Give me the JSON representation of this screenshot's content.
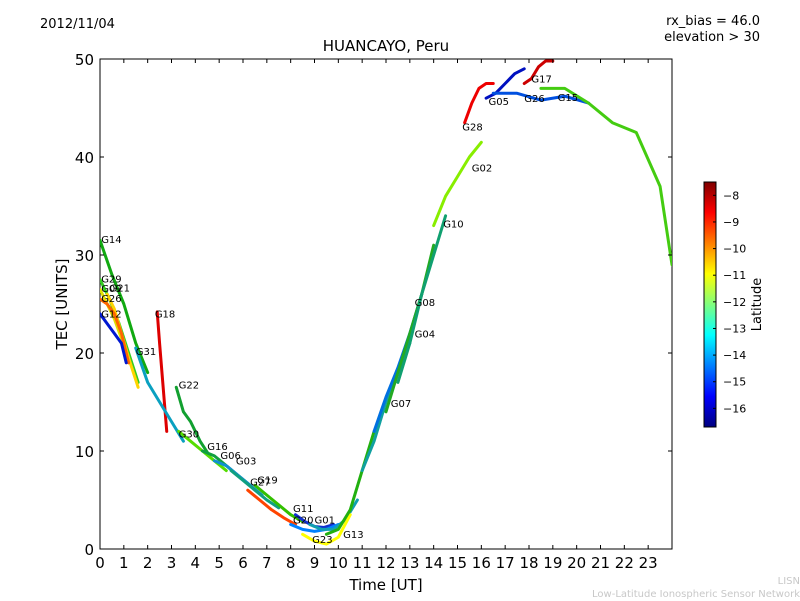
{
  "header": {
    "date": "2012/11/04",
    "rx_bias": "rx_bias = 46.0",
    "elevation": "elevation > 30",
    "credit_line1": "LISN",
    "credit_line2": "Low-Latitude Ionospheric Sensor Network"
  },
  "chart_data": {
    "type": "scatter",
    "title": "HUANCAYO, Peru",
    "xlabel": "Time [UT]",
    "ylabel": "TEC [UNITS]",
    "xlim": [
      0,
      24
    ],
    "ylim": [
      0,
      50
    ],
    "xticks": [
      0,
      1,
      2,
      3,
      4,
      5,
      6,
      7,
      8,
      9,
      10,
      11,
      12,
      13,
      14,
      15,
      16,
      17,
      18,
      19,
      20,
      21,
      22,
      23
    ],
    "yticks": [
      0,
      10,
      20,
      30,
      40,
      50
    ],
    "colorbar": {
      "label": "Latitude",
      "range": [
        -16.7,
        -7.5
      ],
      "ticks": [
        -8,
        -9,
        -10,
        -11,
        -12,
        -13,
        -14,
        -15,
        -16
      ],
      "colors": [
        "#00007f",
        "#0000ff",
        "#007fff",
        "#00ffff",
        "#7fff7f",
        "#ffff00",
        "#ff7f00",
        "#ff0000",
        "#7f0000"
      ]
    },
    "series": [
      {
        "name": "G14",
        "lat": -13.2,
        "color": "#11a911",
        "x": [
          0,
          0.5,
          1,
          1.5,
          2
        ],
        "y": [
          31.5,
          28,
          25,
          21,
          18
        ]
      },
      {
        "name": "G29",
        "lat": -12.6,
        "color": "#33cc22",
        "x": [
          0,
          0.4,
          0.8,
          1.2,
          1.6
        ],
        "y": [
          27.5,
          25.5,
          23,
          20,
          17
        ]
      },
      {
        "name": "G21",
        "lat": -10.3,
        "color": "#ffd400",
        "x": [
          0.3,
          0.6,
          0.9,
          1.2,
          1.6
        ],
        "y": [
          26,
          24.5,
          22,
          19.5,
          16.5
        ]
      },
      {
        "name": "G09",
        "lat": -11.0,
        "color": "#e0e000",
        "x": [
          0,
          0.3,
          0.6,
          0.9,
          1.2
        ],
        "y": [
          26.5,
          25,
          23.5,
          21.5,
          19
        ]
      },
      {
        "name": "G26",
        "lat": -9.3,
        "color": "#ff6600",
        "x": [
          0,
          0.3,
          0.6,
          0.9,
          1.2
        ],
        "y": [
          25.5,
          25,
          24,
          22,
          19
        ]
      },
      {
        "name": "G12",
        "lat": -16.3,
        "color": "#0018d0",
        "x": [
          0,
          0.3,
          0.6,
          0.9,
          1.1
        ],
        "y": [
          24,
          23,
          22,
          21,
          19
        ]
      },
      {
        "name": "G18",
        "lat": -8.2,
        "color": "#dd0000",
        "x": [
          2.4,
          2.5,
          2.6,
          2.7,
          2.8
        ],
        "y": [
          24.2,
          21,
          18,
          15,
          12
        ]
      },
      {
        "name": "G31",
        "lat": -15.0,
        "color": "#0aa0c0",
        "x": [
          1.5,
          2,
          2.5,
          3,
          3.5
        ],
        "y": [
          20.5,
          17,
          15,
          13,
          11
        ]
      },
      {
        "name": "G22",
        "lat": -13.6,
        "color": "#12a030",
        "x": [
          3.2,
          3.5,
          3.8,
          4.2,
          4.6
        ],
        "y": [
          16.5,
          14,
          13,
          11,
          9.5
        ]
      },
      {
        "name": "G30",
        "lat": -12.0,
        "color": "#55dd00",
        "x": [
          3.3,
          3.8,
          4.3,
          4.8,
          5.3
        ],
        "y": [
          12,
          11,
          10,
          9,
          8
        ]
      },
      {
        "name": "G16",
        "lat": -13.5,
        "color": "#10a040",
        "x": [
          4.3,
          4.8,
          5.3,
          5.8,
          6.3
        ],
        "y": [
          10,
          9.5,
          8.5,
          7.5,
          6.5
        ]
      },
      {
        "name": "G06",
        "lat": -15.2,
        "color": "#1090d0",
        "x": [
          4.8,
          5.3,
          5.8,
          6.3,
          6.8
        ],
        "y": [
          9,
          8.5,
          7.5,
          6.5,
          5.5
        ]
      },
      {
        "name": "G03",
        "lat": -14.3,
        "color": "#10a080",
        "x": [
          5.5,
          6,
          6.5,
          7,
          7.5
        ],
        "y": [
          8,
          7,
          6,
          5,
          4.2
        ]
      },
      {
        "name": "G19",
        "lat": -12.8,
        "color": "#33c000",
        "x": [
          6.5,
          7,
          7.5,
          8,
          8.5
        ],
        "y": [
          6.5,
          5.5,
          4.5,
          3.5,
          2.8
        ]
      },
      {
        "name": "G27",
        "lat": -9.0,
        "color": "#ff4400",
        "x": [
          6.2,
          6.7,
          7.2,
          7.7,
          8.2
        ],
        "y": [
          6,
          5,
          4,
          3.2,
          2.5
        ]
      },
      {
        "name": "G11",
        "lat": -16.0,
        "color": "#1030d0",
        "x": [
          8.2,
          8.6,
          9,
          9.4,
          9.8
        ],
        "y": [
          3.5,
          2.8,
          2.3,
          2.2,
          2.5
        ]
      },
      {
        "name": "G20",
        "lat": -15.5,
        "color": "#0080ff",
        "x": [
          8,
          8.5,
          9,
          9.5,
          10
        ],
        "y": [
          2.5,
          2,
          1.8,
          2,
          2.5
        ]
      },
      {
        "name": "G01",
        "lat": -14.8,
        "color": "#10a0b0",
        "x": [
          8.8,
          9.3,
          9.8,
          10.3,
          10.8
        ],
        "y": [
          2.5,
          2,
          2,
          3,
          5
        ]
      },
      {
        "name": "G23",
        "lat": -11.8,
        "color": "#ffff00",
        "x": [
          8.5,
          9,
          9.5,
          10,
          10.5
        ],
        "y": [
          1.5,
          0.8,
          0.5,
          1.2,
          3.5
        ]
      },
      {
        "name": "G13",
        "lat": -12.9,
        "color": "#22b010",
        "x": [
          9.5,
          10,
          10.5,
          11,
          11.5
        ],
        "y": [
          1.5,
          2,
          4,
          8,
          12
        ]
      },
      {
        "name": "G07",
        "lat": -14.5,
        "color": "#10a0a0",
        "x": [
          11,
          11.5,
          12,
          12.5,
          13
        ],
        "y": [
          8,
          11,
          15,
          18,
          21
        ]
      },
      {
        "name": "G04",
        "lat": -15.4,
        "color": "#0070e0",
        "x": [
          11.5,
          12,
          12.5,
          13,
          13.5
        ],
        "y": [
          12,
          15.5,
          18.5,
          22,
          26
        ]
      },
      {
        "name": "G08",
        "lat": -13.0,
        "color": "#22aa22",
        "x": [
          12,
          12.5,
          13,
          13.5,
          14
        ],
        "y": [
          14,
          18,
          22,
          26,
          31
        ]
      },
      {
        "name": "G10",
        "lat": -14.0,
        "color": "#10a070",
        "x": [
          12.5,
          13,
          13.5,
          14,
          14.5
        ],
        "y": [
          17,
          21,
          26,
          30,
          34
        ]
      },
      {
        "name": "G02",
        "lat": -11.5,
        "color": "#88ee00",
        "x": [
          14,
          14.5,
          15,
          15.5,
          16
        ],
        "y": [
          33,
          36,
          38,
          40,
          41.5
        ]
      },
      {
        "name": "G28",
        "lat": -8.6,
        "color": "#ee0000",
        "x": [
          15.3,
          15.6,
          15.9,
          16.2,
          16.5
        ],
        "y": [
          43.5,
          45.5,
          47,
          47.5,
          47.5
        ]
      },
      {
        "name": "G05",
        "lat": -16.5,
        "color": "#0010c0",
        "x": [
          16.2,
          16.6,
          17,
          17.4,
          17.8
        ],
        "y": [
          46,
          46.5,
          47.5,
          48.5,
          49
        ]
      },
      {
        "name": "G17",
        "lat": -8.0,
        "color": "#cc0000",
        "x": [
          17.8,
          18.1,
          18.4,
          18.7,
          19
        ],
        "y": [
          47.5,
          48,
          49.2,
          49.8,
          49.8
        ]
      },
      {
        "name": "G26",
        "lat": -15.8,
        "color": "#0050e0",
        "x": [
          16.5,
          17.5,
          18.5,
          19.5,
          20.5
        ],
        "y": [
          46.5,
          46.5,
          45.8,
          46.2,
          45.5
        ]
      },
      {
        "name": "G15",
        "lat": -12.3,
        "color": "#44cc11",
        "x": [
          18.5,
          19.5,
          20.5,
          21.5,
          22.5,
          23.5,
          24
        ],
        "y": [
          47,
          47,
          45.5,
          43.5,
          42.5,
          37,
          29
        ]
      }
    ],
    "labels": [
      {
        "text": "G14",
        "x": 0.05,
        "y": 31.2
      },
      {
        "text": "G29",
        "x": 0.05,
        "y": 27.2
      },
      {
        "text": "G21",
        "x": 0.4,
        "y": 26.3
      },
      {
        "text": "G09",
        "x": 0.05,
        "y": 26.2
      },
      {
        "text": "G26",
        "x": 0.05,
        "y": 25.2
      },
      {
        "text": "G12",
        "x": 0.05,
        "y": 23.6
      },
      {
        "text": "G18",
        "x": 2.3,
        "y": 23.6
      },
      {
        "text": "G31",
        "x": 1.5,
        "y": 19.8
      },
      {
        "text": "G22",
        "x": 3.3,
        "y": 16.4
      },
      {
        "text": "G30",
        "x": 3.3,
        "y": 11.4
      },
      {
        "text": "G16",
        "x": 4.5,
        "y": 10.1
      },
      {
        "text": "G06",
        "x": 5.05,
        "y": 9.2
      },
      {
        "text": "G03",
        "x": 5.7,
        "y": 8.6
      },
      {
        "text": "G19",
        "x": 6.6,
        "y": 6.7
      },
      {
        "text": "G27",
        "x": 6.3,
        "y": 6.5
      },
      {
        "text": "G11",
        "x": 8.1,
        "y": 3.8
      },
      {
        "text": "G20",
        "x": 8.1,
        "y": 2.6
      },
      {
        "text": "G01",
        "x": 9.0,
        "y": 2.6
      },
      {
        "text": "G23",
        "x": 8.9,
        "y": 0.6
      },
      {
        "text": "G13",
        "x": 10.2,
        "y": 1.1
      },
      {
        "text": "G07",
        "x": 12.2,
        "y": 14.5
      },
      {
        "text": "G04",
        "x": 13.2,
        "y": 21.6
      },
      {
        "text": "G08",
        "x": 13.2,
        "y": 24.8
      },
      {
        "text": "G10",
        "x": 14.4,
        "y": 32.8
      },
      {
        "text": "G02",
        "x": 15.6,
        "y": 38.5
      },
      {
        "text": "G28",
        "x": 15.2,
        "y": 42.7
      },
      {
        "text": "G05",
        "x": 16.3,
        "y": 45.3
      },
      {
        "text": "G17",
        "x": 18.1,
        "y": 47.6
      },
      {
        "text": "G26",
        "x": 17.8,
        "y": 45.6
      },
      {
        "text": "G15",
        "x": 19.2,
        "y": 45.7
      }
    ]
  }
}
